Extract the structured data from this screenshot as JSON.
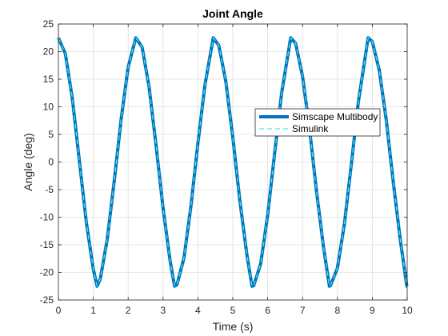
{
  "chart_data": {
    "type": "line",
    "title": "Joint Angle",
    "xlabel": "Time (s)",
    "ylabel": "Angle (deg)",
    "xlim": [
      0,
      10
    ],
    "ylim": [
      -25,
      25
    ],
    "xticks": [
      0,
      1,
      2,
      3,
      4,
      5,
      6,
      7,
      8,
      9,
      10
    ],
    "yticks": [
      -25,
      -20,
      -15,
      -10,
      -5,
      0,
      5,
      10,
      15,
      20,
      25
    ],
    "grid": true,
    "legend_location": "east",
    "series": [
      {
        "name": "Simscape Multibody",
        "color": "#0072BD",
        "style": "solid",
        "x": [
          0,
          0.2,
          0.4,
          0.6,
          0.8,
          1.0,
          1.11,
          1.2,
          1.4,
          1.6,
          1.8,
          2.0,
          2.22,
          2.4,
          2.6,
          2.8,
          3.0,
          3.2,
          3.33,
          3.4,
          3.6,
          3.8,
          4.0,
          4.2,
          4.44,
          4.6,
          4.8,
          5.0,
          5.2,
          5.4,
          5.55,
          5.6,
          5.8,
          6.0,
          6.2,
          6.4,
          6.66,
          6.8,
          7.0,
          7.2,
          7.4,
          7.6,
          7.77,
          7.8,
          8.0,
          8.2,
          8.4,
          8.6,
          8.88,
          9.0,
          9.2,
          9.4,
          9.6,
          9.8,
          9.99,
          10.0
        ],
        "values": [
          22.5,
          19.6,
          11.5,
          0.3,
          -10.9,
          -19.4,
          -22.5,
          -21.2,
          -14.0,
          -3.5,
          7.8,
          17.2,
          22.5,
          20.8,
          13.6,
          3.0,
          -8.3,
          -17.8,
          -22.5,
          -22.2,
          -17.4,
          -8.0,
          3.4,
          13.9,
          22.5,
          21.1,
          14.6,
          4.5,
          -6.9,
          -16.6,
          -22.5,
          -22.4,
          -18.4,
          -9.6,
          1.6,
          12.5,
          22.5,
          21.5,
          15.5,
          6.0,
          -5.3,
          -15.4,
          -22.5,
          -22.4,
          -19.2,
          -11.2,
          -0.3,
          10.9,
          22.5,
          21.8,
          16.6,
          7.6,
          -3.6,
          -14.0,
          -22.5,
          -22.5
        ]
      },
      {
        "name": "Simulink",
        "color": "#4DE8E8",
        "style": "dashed",
        "x": [
          0,
          0.2,
          0.4,
          0.6,
          0.8,
          1.0,
          1.11,
          1.2,
          1.4,
          1.6,
          1.8,
          2.0,
          2.22,
          2.4,
          2.6,
          2.8,
          3.0,
          3.2,
          3.33,
          3.4,
          3.6,
          3.8,
          4.0,
          4.2,
          4.44,
          4.6,
          4.8,
          5.0,
          5.2,
          5.4,
          5.55,
          5.6,
          5.8,
          6.0,
          6.2,
          6.4,
          6.66,
          6.8,
          7.0,
          7.2,
          7.4,
          7.6,
          7.77,
          7.8,
          8.0,
          8.2,
          8.4,
          8.6,
          8.88,
          9.0,
          9.2,
          9.4,
          9.6,
          9.8,
          9.99,
          10.0
        ],
        "values": [
          22.5,
          19.6,
          11.5,
          0.3,
          -10.9,
          -19.4,
          -22.5,
          -21.2,
          -14.0,
          -3.5,
          7.8,
          17.2,
          22.5,
          20.8,
          13.6,
          3.0,
          -8.3,
          -17.8,
          -22.5,
          -22.2,
          -17.4,
          -8.0,
          3.4,
          13.9,
          22.5,
          21.1,
          14.6,
          4.5,
          -6.9,
          -16.6,
          -22.5,
          -22.4,
          -18.4,
          -9.6,
          1.6,
          12.5,
          22.5,
          21.5,
          15.5,
          6.0,
          -5.3,
          -15.4,
          -22.5,
          -22.4,
          -19.2,
          -11.2,
          -0.3,
          10.9,
          22.5,
          21.8,
          16.6,
          7.6,
          -3.6,
          -14.0,
          -22.5,
          -22.5
        ]
      }
    ]
  }
}
